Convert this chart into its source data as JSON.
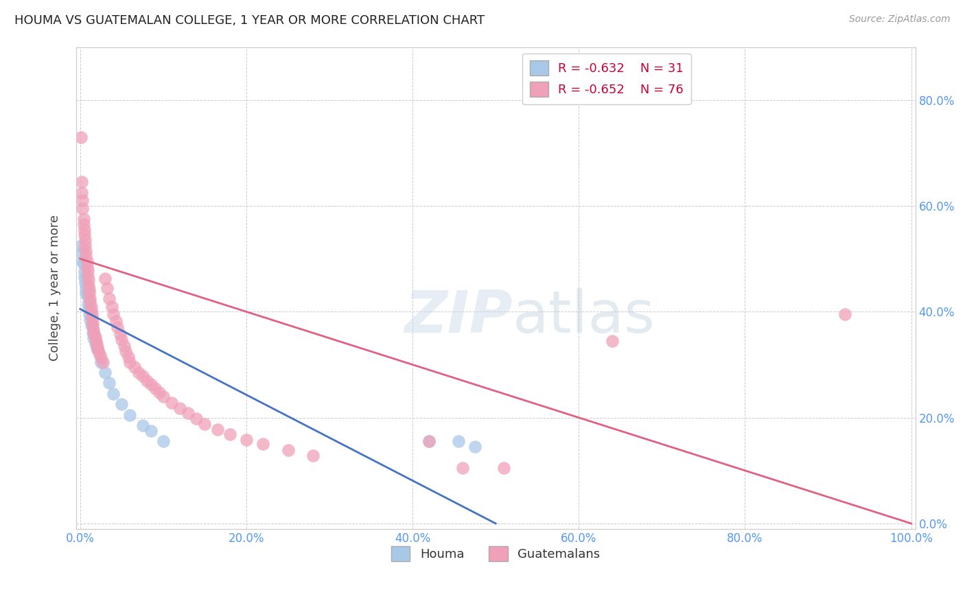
{
  "title": "HOUMA VS GUATEMALAN COLLEGE, 1 YEAR OR MORE CORRELATION CHART",
  "source": "Source: ZipAtlas.com",
  "ylabel": "College, 1 year or more",
  "xlim": [
    -0.005,
    1.005
  ],
  "ylim": [
    -0.01,
    0.9
  ],
  "x_ticks": [
    0.0,
    0.2,
    0.4,
    0.6,
    0.8,
    1.0
  ],
  "x_tick_labels": [
    "0.0%",
    "20.0%",
    "40.0%",
    "60.0%",
    "80.0%",
    "100.0%"
  ],
  "y_ticks": [
    0.0,
    0.2,
    0.4,
    0.6,
    0.8
  ],
  "y_tick_labels": [
    "0.0%",
    "20.0%",
    "40.0%",
    "60.0%",
    "80.0%"
  ],
  "houma_R": "-0.632",
  "houma_N": "31",
  "guatemalan_R": "-0.652",
  "guatemalan_N": "76",
  "houma_color": "#a8c8e8",
  "guatemalan_color": "#f0a0b8",
  "houma_line_color": "#4472c4",
  "guatemalan_line_color": "#e06080",
  "watermark_zip": "ZIP",
  "watermark_atlas": "atlas",
  "houma_points": [
    [
      0.001,
      0.525
    ],
    [
      0.002,
      0.51
    ],
    [
      0.003,
      0.495
    ],
    [
      0.004,
      0.49
    ],
    [
      0.005,
      0.475
    ],
    [
      0.005,
      0.465
    ],
    [
      0.006,
      0.455
    ],
    [
      0.007,
      0.445
    ],
    [
      0.007,
      0.435
    ],
    [
      0.008,
      0.43
    ],
    [
      0.009,
      0.415
    ],
    [
      0.01,
      0.405
    ],
    [
      0.011,
      0.395
    ],
    [
      0.012,
      0.385
    ],
    [
      0.013,
      0.375
    ],
    [
      0.015,
      0.36
    ],
    [
      0.016,
      0.35
    ],
    [
      0.018,
      0.34
    ],
    [
      0.02,
      0.33
    ],
    [
      0.025,
      0.305
    ],
    [
      0.03,
      0.285
    ],
    [
      0.035,
      0.265
    ],
    [
      0.04,
      0.245
    ],
    [
      0.05,
      0.225
    ],
    [
      0.06,
      0.205
    ],
    [
      0.075,
      0.185
    ],
    [
      0.085,
      0.175
    ],
    [
      0.1,
      0.155
    ],
    [
      0.42,
      0.155
    ],
    [
      0.455,
      0.155
    ],
    [
      0.475,
      0.145
    ]
  ],
  "guatemalan_points": [
    [
      0.001,
      0.73
    ],
    [
      0.002,
      0.645
    ],
    [
      0.002,
      0.625
    ],
    [
      0.003,
      0.61
    ],
    [
      0.003,
      0.595
    ],
    [
      0.004,
      0.575
    ],
    [
      0.004,
      0.565
    ],
    [
      0.005,
      0.555
    ],
    [
      0.005,
      0.545
    ],
    [
      0.006,
      0.535
    ],
    [
      0.006,
      0.525
    ],
    [
      0.007,
      0.515
    ],
    [
      0.007,
      0.505
    ],
    [
      0.008,
      0.495
    ],
    [
      0.008,
      0.485
    ],
    [
      0.009,
      0.478
    ],
    [
      0.009,
      0.468
    ],
    [
      0.01,
      0.46
    ],
    [
      0.01,
      0.45
    ],
    [
      0.011,
      0.442
    ],
    [
      0.011,
      0.435
    ],
    [
      0.012,
      0.425
    ],
    [
      0.012,
      0.418
    ],
    [
      0.013,
      0.41
    ],
    [
      0.013,
      0.402
    ],
    [
      0.014,
      0.395
    ],
    [
      0.014,
      0.388
    ],
    [
      0.015,
      0.38
    ],
    [
      0.015,
      0.373
    ],
    [
      0.016,
      0.366
    ],
    [
      0.017,
      0.358
    ],
    [
      0.018,
      0.352
    ],
    [
      0.019,
      0.345
    ],
    [
      0.02,
      0.338
    ],
    [
      0.021,
      0.332
    ],
    [
      0.022,
      0.326
    ],
    [
      0.023,
      0.32
    ],
    [
      0.025,
      0.313
    ],
    [
      0.027,
      0.305
    ],
    [
      0.03,
      0.462
    ],
    [
      0.032,
      0.445
    ],
    [
      0.035,
      0.425
    ],
    [
      0.038,
      0.41
    ],
    [
      0.04,
      0.395
    ],
    [
      0.043,
      0.382
    ],
    [
      0.045,
      0.37
    ],
    [
      0.048,
      0.358
    ],
    [
      0.05,
      0.347
    ],
    [
      0.053,
      0.336
    ],
    [
      0.055,
      0.325
    ],
    [
      0.058,
      0.315
    ],
    [
      0.06,
      0.305
    ],
    [
      0.065,
      0.295
    ],
    [
      0.07,
      0.285
    ],
    [
      0.075,
      0.278
    ],
    [
      0.08,
      0.27
    ],
    [
      0.085,
      0.263
    ],
    [
      0.09,
      0.255
    ],
    [
      0.095,
      0.248
    ],
    [
      0.1,
      0.24
    ],
    [
      0.11,
      0.228
    ],
    [
      0.12,
      0.218
    ],
    [
      0.13,
      0.208
    ],
    [
      0.14,
      0.198
    ],
    [
      0.15,
      0.188
    ],
    [
      0.165,
      0.178
    ],
    [
      0.18,
      0.168
    ],
    [
      0.2,
      0.158
    ],
    [
      0.22,
      0.15
    ],
    [
      0.25,
      0.138
    ],
    [
      0.28,
      0.128
    ],
    [
      0.42,
      0.155
    ],
    [
      0.46,
      0.105
    ],
    [
      0.51,
      0.105
    ],
    [
      0.64,
      0.345
    ],
    [
      0.92,
      0.395
    ]
  ],
  "background_color": "#ffffff",
  "grid_color": "#cccccc",
  "houma_line_x0": 0.0,
  "houma_line_y0": 0.405,
  "houma_line_x1": 0.5,
  "houma_line_y1": 0.0,
  "guatemalan_line_x0": 0.0,
  "guatemalan_line_y0": 0.5,
  "guatemalan_line_x1": 1.0,
  "guatemalan_line_y1": 0.0
}
